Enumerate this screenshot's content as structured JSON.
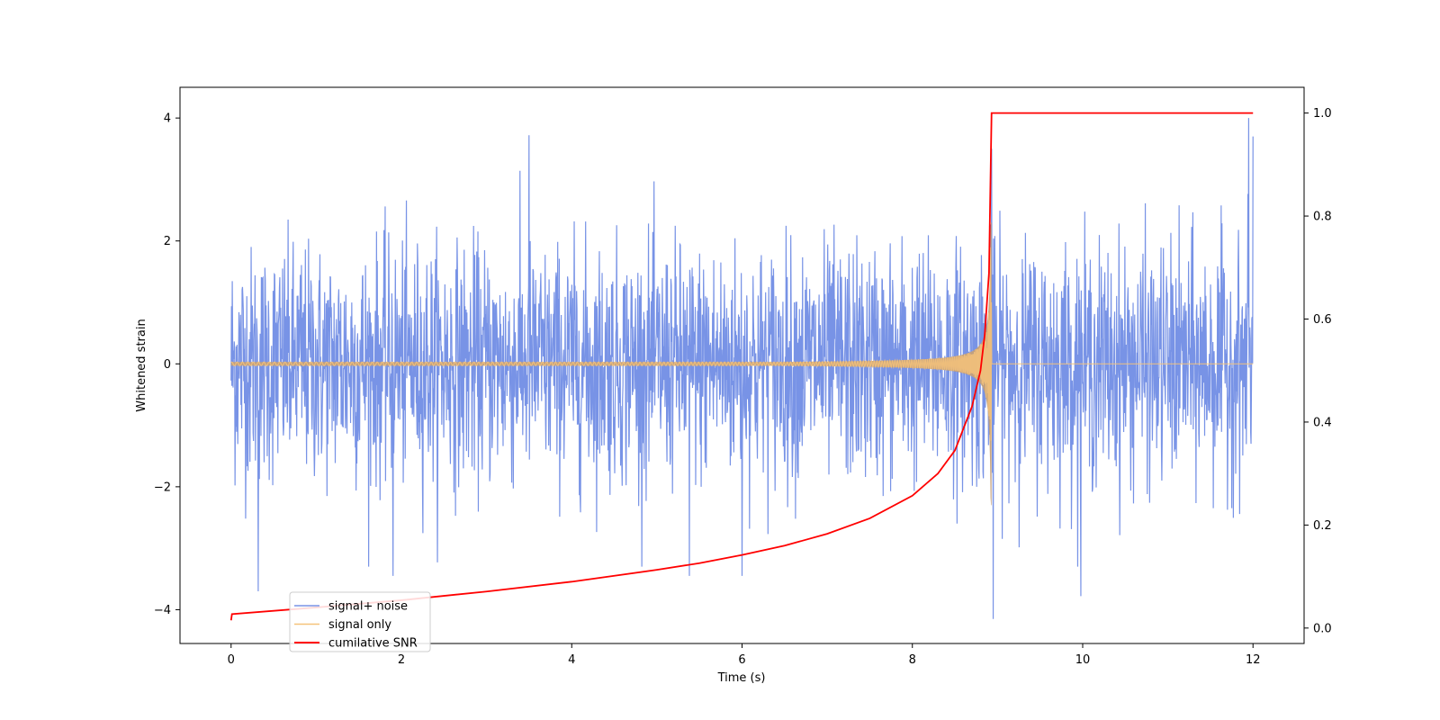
{
  "chart_data": {
    "type": "line",
    "title": "",
    "xlabel": "Time (s)",
    "ylabel": "Whitened strain",
    "y2label": "",
    "xlim": [
      -0.6,
      12.6
    ],
    "ylim": [
      -4.55,
      4.5
    ],
    "y2lim": [
      -0.03,
      1.05
    ],
    "xticks": [
      0,
      2,
      4,
      6,
      8,
      10,
      12
    ],
    "yticks": [
      -4,
      -2,
      0,
      2,
      4
    ],
    "y2ticks": [
      0.0,
      0.2,
      0.4,
      0.6,
      0.8,
      1.0
    ],
    "xtick_labels": [
      "0",
      "2",
      "4",
      "6",
      "8",
      "10",
      "12"
    ],
    "ytick_labels": [
      "−4",
      "−2",
      "0",
      "2",
      "4"
    ],
    "y2tick_labels": [
      "0.0",
      "0.2",
      "0.4",
      "0.6",
      "0.8",
      "1.0"
    ],
    "grid": false,
    "legend_position": "lower-left",
    "series": [
      {
        "name": "signal+ noise",
        "color": "#7893e6",
        "axis": "left",
        "description_values": {
          "x_start": 0,
          "x_end": 12,
          "noise_std": 0.95,
          "peak_max": 4.05,
          "peak_min": -4.15,
          "notable_spikes": [
            [
              1.17,
              3.55
            ],
            [
              3.5,
              3.72
            ],
            [
              8.93,
              3.5
            ],
            [
              8.95,
              -4.15
            ],
            [
              11.95,
              4.0
            ],
            [
              12.0,
              3.7
            ],
            [
              0.32,
              -3.7
            ],
            [
              9.98,
              -3.78
            ],
            [
              1.9,
              -3.45
            ],
            [
              5.38,
              -3.45
            ],
            [
              6.0,
              -3.45
            ]
          ]
        }
      },
      {
        "name": "signal only",
        "color": "#f5c27a",
        "axis": "left",
        "description_values": {
          "x_start": 0,
          "x_end": 12,
          "merger_time": 8.93,
          "amplitude_at_start": 0.03,
          "amplitude_at_merger": 2.3
        }
      },
      {
        "name": "cumilative SNR",
        "color": "#ff0000",
        "axis": "right",
        "x": [
          0,
          0.01,
          1,
          2,
          3,
          4,
          5,
          5.5,
          6,
          6.5,
          7,
          7.5,
          8,
          8.3,
          8.5,
          8.7,
          8.8,
          8.85,
          8.9,
          8.93,
          9.0,
          10,
          11,
          12
        ],
        "values": [
          0.015,
          0.027,
          0.04,
          0.054,
          0.071,
          0.09,
          0.113,
          0.126,
          0.142,
          0.16,
          0.183,
          0.213,
          0.257,
          0.3,
          0.345,
          0.43,
          0.5,
          0.57,
          0.69,
          1.0,
          1.0,
          1.0,
          1.0,
          1.0
        ]
      }
    ]
  }
}
